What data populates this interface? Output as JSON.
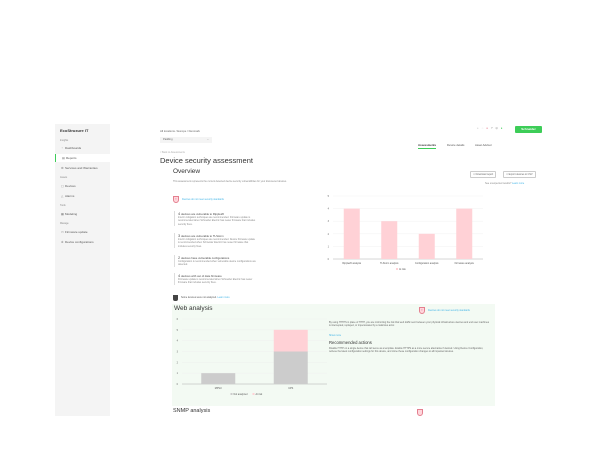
{
  "app": {
    "logo": "EcoStruxure IT",
    "brand_button": "Schneider"
  },
  "sidebar": {
    "sections": [
      "Insights",
      "Assets",
      "Tools",
      "Manage"
    ],
    "items": [
      {
        "label": "Dashboards",
        "icon": "dashboard-icon"
      },
      {
        "label": "Reports",
        "icon": "report-icon",
        "active": true
      },
      {
        "label": "Services and Warranties",
        "icon": "services-icon"
      },
      {
        "label": "Devices",
        "icon": "device-icon"
      },
      {
        "label": "Alarms",
        "icon": "alarm-icon"
      },
      {
        "label": "Modeling",
        "icon": "modeling-icon"
      },
      {
        "label": "Firmware update",
        "icon": "firmware-icon"
      },
      {
        "label": "Device configurations",
        "icon": "config-icon"
      }
    ]
  },
  "header": {
    "breadcrumb": "All locations / Europe / Denmark",
    "location_select": "Padding",
    "back_link": "< Back to Assessments",
    "title": "Device security assessment",
    "tabs": [
      {
        "label": "Assessments",
        "active": true
      },
      {
        "label": "Device details"
      },
      {
        "label": "Asset Advisor"
      }
    ],
    "notification_color": "#e47f8f"
  },
  "overview": {
    "title": "Overview",
    "description": "This assessment represents the current detected device security vulnerabilities for your discovered devices.",
    "download_report": "Download report",
    "export_csv": "Export devices to CSV",
    "unexpected": "See unexpected results?",
    "learn_more": "Learn more",
    "status_badge": "Devices do not meet security standards",
    "findings": [
      {
        "count": "4",
        "title": "devices are vulnerable to Ripple20",
        "text": "Interim mitigation techniques are recommended. Firmware update is recommended when Schneider Electric has newer firmware that includes security fixes."
      },
      {
        "count": "3",
        "title": "devices are vulnerable to TLStorm",
        "text": "Interim mitigation techniques are recommended. Device firmware update is recommended when Schneider Electric has newer firmware that includes security fixes."
      },
      {
        "count": "2",
        "title": "devices have vulnerable configurations",
        "text": "Configuration is recommended when vulnerable device configurations are detected."
      },
      {
        "count": "4",
        "title": "devices with out of date firmware",
        "text": "Firmware update is recommended when Schneider Electric has newer firmware that includes security fixes."
      }
    ],
    "not_analyzed": "Some devices were not analyzed.",
    "not_analyzed_link": "Learn more"
  },
  "web": {
    "title": "Web analysis",
    "status_badge": "Devices do not meet security standards",
    "description": "By using HTTPS in place of HTTP, you are minimizing the risk that web traffic sent between your physical infrastructure devices and end user machines is intercepted, replayed, or impersonated by a malicious actor.",
    "show_more": "Show more",
    "rec_title": "Recommended actions",
    "rec_text": "Disable HTTP on a single device that will serve as a template. Enable HTTPS as a more secure alternative if desired. Using Device Configuration, retrieve the latest configuration settings for this device, and clone these configuration changes to all impacted devices."
  },
  "next_section": {
    "title": "SNMP analysis"
  },
  "chart_data": [
    {
      "type": "bar",
      "categories": [
        "Ripple20 analysis",
        "TLStorm analysis",
        "Configuration analysis",
        "Firmware analysis"
      ],
      "series": [
        {
          "name": "At risk",
          "values": [
            4,
            3,
            2,
            4
          ],
          "color": "#ffd1d6"
        }
      ],
      "ylim": [
        0,
        5
      ],
      "yticks": [
        "0",
        "1",
        "2",
        "3",
        "4",
        "5"
      ],
      "grid": true,
      "legend": "bottom"
    },
    {
      "type": "bar",
      "stacked": true,
      "categories": [
        "MPSU",
        "UPS"
      ],
      "series": [
        {
          "name": "Not analyzed",
          "values": [
            1,
            3
          ],
          "color": "#cccccc"
        },
        {
          "name": "At risk",
          "values": [
            0,
            2
          ],
          "color": "#ffd1d6"
        }
      ],
      "ylim": [
        0,
        6
      ],
      "yticks": [
        "0",
        "1",
        "2",
        "3",
        "4",
        "5",
        "6"
      ],
      "grid": true,
      "legend": "bottom"
    }
  ]
}
